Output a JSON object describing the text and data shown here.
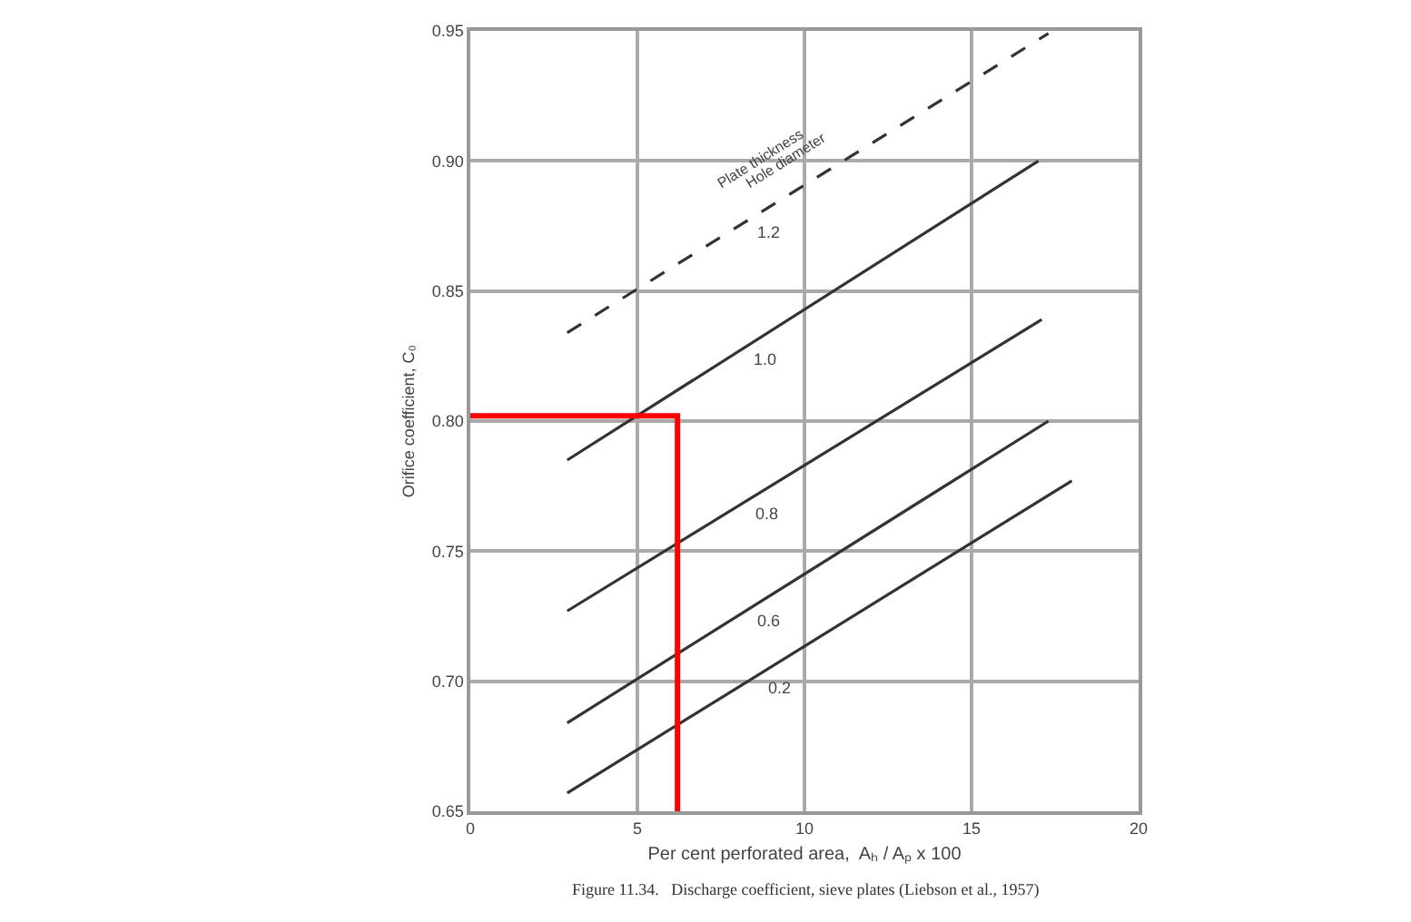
{
  "chart_data": {
    "type": "line",
    "xlabel": "Per cent perforated area,  Aₕ / Aₚ x 100",
    "ylabel": "Orifice coefficient, C₀",
    "xlim": [
      0,
      20
    ],
    "ylim": [
      0.65,
      0.95
    ],
    "xticks": [
      0,
      5,
      10,
      15,
      20
    ],
    "yticks": [
      {
        "value": 0.65,
        "label": "0.65"
      },
      {
        "value": 0.7,
        "label": "0.70"
      },
      {
        "value": 0.75,
        "label": "0.75"
      },
      {
        "value": 0.8,
        "label": "0.80"
      },
      {
        "value": 0.85,
        "label": "0.85"
      },
      {
        "value": 0.9,
        "label": "0.90"
      },
      {
        "value": 0.95,
        "label": "0.95"
      }
    ],
    "grid": true,
    "marker": "none",
    "series": [
      {
        "name": "1.2",
        "color": "#333333",
        "line_style": "dashed",
        "x": [
          2.9,
          17.3
        ],
        "values": [
          0.834,
          0.949
        ]
      },
      {
        "name": "1.0",
        "color": "#333333",
        "line_style": "solid",
        "x": [
          2.9,
          17.0
        ],
        "values": [
          0.785,
          0.9
        ]
      },
      {
        "name": "0.8",
        "color": "#333333",
        "line_style": "solid",
        "x": [
          2.9,
          17.1
        ],
        "values": [
          0.727,
          0.839
        ]
      },
      {
        "name": "0.6",
        "color": "#333333",
        "line_style": "solid",
        "x": [
          2.9,
          17.3
        ],
        "values": [
          0.684,
          0.8
        ]
      },
      {
        "name": "0.2",
        "color": "#333333",
        "line_style": "solid",
        "x": [
          2.9,
          18.0
        ],
        "values": [
          0.657,
          0.777
        ]
      },
      {
        "color": "#ff0000",
        "line_style": "solid",
        "x": [
          0,
          6.2,
          6.2
        ],
        "values": [
          0.802,
          0.802,
          0.65
        ]
      }
    ],
    "annotations": [
      "Plate thickness",
      "Hole diameter",
      "Figure 11.34.   Discharge coefficient, sieve plates (Liebson et al., 1957)"
    ]
  }
}
